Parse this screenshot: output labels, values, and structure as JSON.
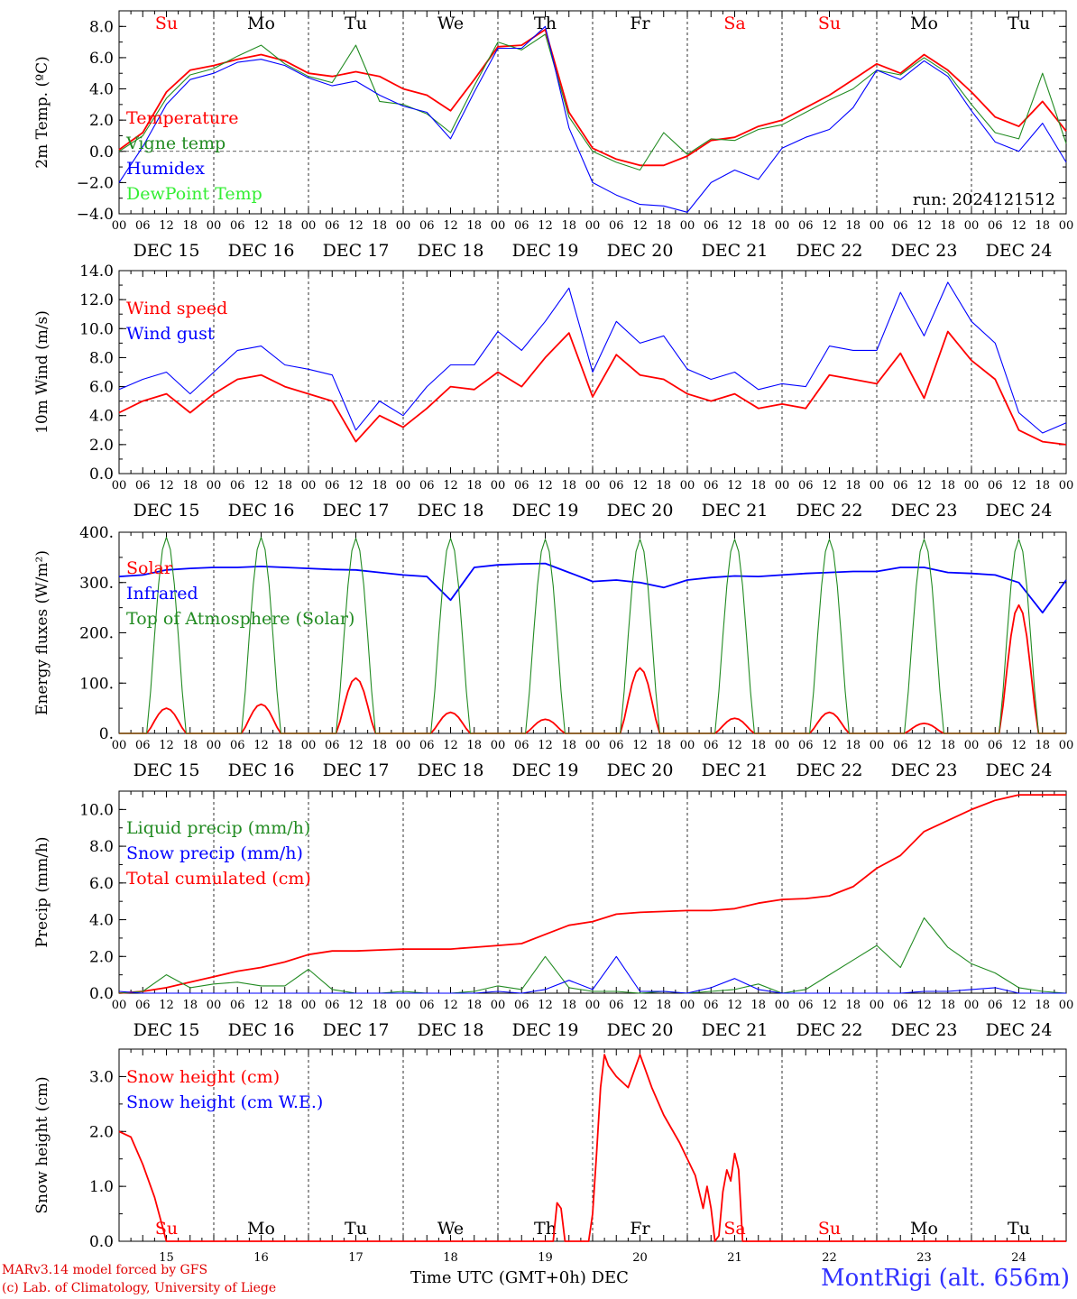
{
  "footer": {
    "model_line": "MARv3.14 model forced by GFS",
    "credit_line": "(c) Lab. of Climatology, University of Liege",
    "time_label": "Time UTC (GMT+0h) DEC",
    "station": "MontRigi (alt. 656m)"
  },
  "colors": {
    "red": "#ff0000",
    "green": "#228b22",
    "blue": "#0000ff",
    "lightgreen": "#33ee33",
    "black": "#000000"
  },
  "chart_data": [
    {
      "id": "temp",
      "type": "line",
      "ylabel": "2m Temp. (ºC)",
      "ylim": [
        -4,
        9
      ],
      "yticks": [
        -4,
        -2,
        0,
        2,
        4,
        6,
        8
      ],
      "ytick_labels": [
        "−4.0",
        "−2.0",
        "0.0",
        "2.0",
        "4.0",
        "6.0",
        "8.0"
      ],
      "ref_line": 0,
      "day_names": [
        "Su",
        "Mo",
        "Tu",
        "We",
        "Th",
        "Fr",
        "Sa",
        "Su",
        "Mo",
        "Tu"
      ],
      "day_colors": [
        "red",
        "black",
        "black",
        "black",
        "black",
        "black",
        "red",
        "red",
        "black",
        "black"
      ],
      "annotation": "run: 2024121512",
      "x_hours": [
        0,
        6,
        12,
        18,
        24,
        30,
        36,
        42,
        48,
        54,
        60,
        66,
        72,
        78,
        84,
        90,
        96,
        102,
        108,
        114,
        120,
        126,
        132,
        138,
        144,
        150,
        156,
        162,
        168,
        174,
        180,
        186,
        192,
        198,
        204,
        210,
        216,
        222,
        228,
        234,
        240
      ],
      "series": [
        {
          "name": "Temperature",
          "color": "red",
          "values": [
            0.1,
            1.2,
            3.8,
            5.2,
            5.5,
            5.9,
            6.2,
            5.8,
            5.0,
            4.8,
            5.1,
            4.8,
            4.0,
            3.6,
            2.6,
            4.6,
            6.7,
            6.8,
            7.8,
            2.5,
            0.2,
            -0.5,
            -0.9,
            -0.9,
            -0.3,
            0.7,
            0.9,
            1.6,
            2.0,
            2.8,
            3.6,
            4.6,
            5.6,
            5.0,
            6.2,
            5.2,
            3.8,
            2.2,
            1.6,
            3.2,
            1.3
          ]
        },
        {
          "name": "Vigne temp",
          "color": "green",
          "values": [
            0.0,
            1.0,
            3.4,
            4.9,
            5.3,
            6.1,
            6.8,
            5.6,
            4.8,
            4.4,
            6.8,
            3.2,
            3.0,
            2.4,
            1.2,
            4.2,
            7.0,
            6.5,
            7.5,
            2.2,
            0.0,
            -0.7,
            -1.2,
            1.2,
            -0.2,
            0.8,
            0.7,
            1.4,
            1.7,
            2.5,
            3.3,
            4.0,
            5.2,
            4.9,
            6.0,
            5.0,
            3.0,
            1.2,
            0.8,
            5.0,
            0.5
          ]
        },
        {
          "name": "Humidex",
          "color": "blue",
          "values": [
            -2.0,
            0.3,
            3.0,
            4.6,
            5.0,
            5.7,
            5.9,
            5.5,
            4.7,
            4.2,
            4.5,
            3.6,
            2.9,
            2.5,
            0.8,
            3.8,
            6.6,
            6.6,
            8.0,
            1.5,
            -2.0,
            -2.8,
            -3.4,
            -3.5,
            -3.9,
            -2.0,
            -1.2,
            -1.8,
            0.2,
            0.9,
            1.4,
            2.8,
            5.2,
            4.6,
            5.8,
            4.8,
            2.6,
            0.6,
            0.0,
            1.8,
            -0.7
          ]
        }
      ],
      "legend": [
        {
          "label": "Temperature",
          "color": "red"
        },
        {
          "label": "Vigne temp",
          "color": "green"
        },
        {
          "label": "Humidex",
          "color": "blue"
        },
        {
          "label": "DewPoint Temp",
          "color": "lightgreen"
        }
      ]
    },
    {
      "id": "wind",
      "type": "line",
      "ylabel": "10m Wind (m/s)",
      "ylim": [
        0,
        14
      ],
      "yticks": [
        0,
        2,
        4,
        6,
        8,
        10,
        12,
        14
      ],
      "ytick_labels": [
        "0.0",
        "2.0",
        "4.0",
        "6.0",
        "8.0",
        "10.0",
        "12.0",
        "14.0"
      ],
      "ref_line": 5,
      "x_hours": [
        0,
        6,
        12,
        18,
        24,
        30,
        36,
        42,
        48,
        54,
        60,
        66,
        72,
        78,
        84,
        90,
        96,
        102,
        108,
        114,
        120,
        126,
        132,
        138,
        144,
        150,
        156,
        162,
        168,
        174,
        180,
        186,
        192,
        198,
        204,
        210,
        216,
        222,
        228,
        234,
        240
      ],
      "series": [
        {
          "name": "Wind speed",
          "color": "red",
          "values": [
            4.2,
            5.0,
            5.5,
            4.2,
            5.5,
            6.5,
            6.8,
            6.0,
            5.5,
            5.0,
            2.2,
            4.0,
            3.2,
            4.5,
            6.0,
            5.8,
            7.0,
            6.0,
            8.0,
            9.7,
            5.3,
            8.2,
            6.8,
            6.5,
            5.5,
            5.0,
            5.5,
            4.5,
            4.8,
            4.5,
            6.8,
            6.5,
            6.2,
            8.3,
            5.2,
            9.8,
            7.8,
            6.5,
            3.0,
            2.2,
            2.0
          ]
        },
        {
          "name": "Wind gust",
          "color": "blue",
          "values": [
            5.8,
            6.5,
            7.0,
            5.5,
            7.0,
            8.5,
            8.8,
            7.5,
            7.2,
            6.8,
            3.0,
            5.0,
            4.0,
            6.0,
            7.5,
            7.5,
            9.8,
            8.5,
            10.5,
            12.8,
            7.0,
            10.5,
            9.0,
            9.5,
            7.2,
            6.5,
            7.0,
            5.8,
            6.2,
            6.0,
            8.8,
            8.5,
            8.5,
            12.5,
            9.5,
            13.2,
            10.5,
            9.0,
            4.2,
            2.8,
            3.5
          ]
        }
      ],
      "legend": [
        {
          "label": "Wind speed",
          "color": "red"
        },
        {
          "label": "Wind gust",
          "color": "blue"
        }
      ]
    },
    {
      "id": "energy",
      "type": "line",
      "ylabel": "Energy fluxes (W/m²)",
      "ylim": [
        0,
        400
      ],
      "yticks": [
        0,
        100,
        200,
        300,
        400
      ],
      "ytick_labels": [
        "0.",
        "100.",
        "200.",
        "300.",
        "400."
      ],
      "x_hours": [
        0,
        6,
        12,
        18,
        24,
        30,
        36,
        42,
        48,
        54,
        60,
        66,
        72,
        78,
        84,
        90,
        96,
        102,
        108,
        114,
        120,
        126,
        132,
        138,
        144,
        150,
        156,
        162,
        168,
        174,
        180,
        186,
        192,
        198,
        204,
        210,
        216,
        222,
        228,
        234,
        240
      ],
      "series": [
        {
          "name": "Infrared",
          "color": "blue",
          "values": [
            312,
            315,
            325,
            328,
            330,
            330,
            332,
            330,
            328,
            326,
            325,
            320,
            315,
            312,
            265,
            330,
            335,
            337,
            338,
            320,
            302,
            305,
            300,
            290,
            305,
            310,
            313,
            312,
            315,
            318,
            320,
            322,
            322,
            330,
            330,
            320,
            318,
            315,
            300,
            240,
            305
          ]
        },
        {
          "name": "Solar",
          "color": "red",
          "daily_peaks": [
            50,
            58,
            110,
            42,
            28,
            130,
            30,
            42,
            20,
            255
          ]
        },
        {
          "name": "Top of Atmosphere (Solar)",
          "color": "green",
          "daily_peaks": [
            390,
            390,
            388,
            388,
            386,
            386,
            386,
            386,
            386,
            386
          ]
        }
      ],
      "legend": [
        {
          "label": "Solar",
          "color": "red"
        },
        {
          "label": "Infrared",
          "color": "blue"
        },
        {
          "label": "Top of Atmosphere (Solar)",
          "color": "green"
        }
      ]
    },
    {
      "id": "precip",
      "type": "line",
      "ylabel": "Precip (mm/h)",
      "ylim": [
        0,
        11
      ],
      "yticks": [
        0,
        2,
        4,
        6,
        8,
        10
      ],
      "ytick_labels": [
        "0.0",
        "2.0",
        "4.0",
        "6.0",
        "8.0",
        "10.0"
      ],
      "x_hours": [
        0,
        6,
        12,
        18,
        24,
        30,
        36,
        42,
        48,
        54,
        60,
        66,
        72,
        78,
        84,
        90,
        96,
        102,
        108,
        114,
        120,
        126,
        132,
        138,
        144,
        150,
        156,
        162,
        168,
        174,
        180,
        186,
        192,
        198,
        204,
        210,
        216,
        222,
        228,
        234,
        240
      ],
      "series": [
        {
          "name": "Total cumulated (cm)",
          "color": "red",
          "values": [
            0.0,
            0.1,
            0.3,
            0.6,
            0.9,
            1.2,
            1.4,
            1.7,
            2.1,
            2.3,
            2.3,
            2.35,
            2.4,
            2.4,
            2.4,
            2.5,
            2.6,
            2.7,
            3.2,
            3.7,
            3.9,
            4.3,
            4.4,
            4.45,
            4.5,
            4.5,
            4.6,
            4.9,
            5.1,
            5.15,
            5.3,
            5.8,
            6.8,
            7.5,
            8.8,
            9.4,
            10.0,
            10.5,
            10.8,
            10.8,
            10.8
          ]
        },
        {
          "name": "Liquid precip (mm/h)",
          "color": "green",
          "values": [
            0.0,
            0.1,
            1.0,
            0.3,
            0.5,
            0.6,
            0.4,
            0.4,
            1.3,
            0.2,
            0.0,
            0.0,
            0.1,
            0.0,
            0.0,
            0.1,
            0.4,
            0.2,
            2.0,
            0.3,
            0.1,
            0.1,
            0.0,
            0.1,
            0.0,
            0.1,
            0.2,
            0.5,
            0.0,
            0.2,
            1.0,
            1.8,
            2.6,
            1.4,
            4.1,
            2.5,
            1.6,
            1.1,
            0.3,
            0.1,
            0.0
          ]
        },
        {
          "name": "Snow precip (mm/h)",
          "color": "blue",
          "values": [
            0.1,
            0.0,
            0.0,
            0.0,
            0.0,
            0.0,
            0.0,
            0.0,
            0.0,
            0.0,
            0.0,
            0.0,
            0.0,
            0.0,
            0.0,
            0.0,
            0.1,
            0.0,
            0.2,
            0.7,
            0.2,
            2.0,
            0.1,
            0.1,
            0.0,
            0.3,
            0.8,
            0.2,
            0.0,
            0.0,
            0.0,
            0.0,
            0.0,
            0.0,
            0.1,
            0.1,
            0.2,
            0.3,
            0.0,
            0.0,
            0.0
          ]
        }
      ],
      "legend": [
        {
          "label": "Liquid precip (mm/h)",
          "color": "green"
        },
        {
          "label": "Snow precip (mm/h)",
          "color": "blue"
        },
        {
          "label": "Total cumulated (cm)",
          "color": "red"
        }
      ]
    },
    {
      "id": "snow",
      "type": "line",
      "ylabel": "Snow height (cm)",
      "ylim": [
        0,
        3.5
      ],
      "yticks": [
        0,
        1,
        2,
        3
      ],
      "ytick_labels": [
        "0.0",
        "1.0",
        "2.0",
        "3.0"
      ],
      "day_names": [
        "Su",
        "Mo",
        "Tu",
        "We",
        "Th",
        "Fr",
        "Sa",
        "Su",
        "Mo",
        "Tu"
      ],
      "day_colors": [
        "red",
        "black",
        "black",
        "black",
        "black",
        "black",
        "red",
        "red",
        "black",
        "black"
      ],
      "day_numbers": [
        "15",
        "16",
        "17",
        "18",
        "19",
        "20",
        "21",
        "22",
        "23",
        "24"
      ],
      "x_hours": [
        0,
        3,
        6,
        9,
        12,
        15,
        18,
        84,
        110,
        111,
        112,
        113,
        114,
        119,
        120,
        121,
        122,
        123,
        124,
        126,
        129,
        132,
        135,
        138,
        142,
        146,
        148,
        149,
        150,
        151,
        152,
        153,
        154,
        155,
        156,
        157,
        158,
        240
      ],
      "series": [
        {
          "name": "Snow height (cm)",
          "color": "red",
          "values": [
            2.0,
            1.9,
            1.4,
            0.8,
            0.0,
            0.0,
            0.0,
            0.0,
            0.0,
            0.7,
            0.6,
            0.0,
            0.0,
            0.0,
            0.5,
            1.6,
            2.8,
            3.4,
            3.2,
            3.0,
            2.8,
            3.4,
            2.8,
            2.3,
            1.8,
            1.2,
            0.6,
            1.0,
            0.6,
            0.0,
            0.1,
            0.9,
            1.3,
            1.1,
            1.6,
            1.3,
            0.0,
            0.0
          ]
        }
      ],
      "legend": [
        {
          "label": "Snow height (cm)",
          "color": "red"
        },
        {
          "label": "Snow height (cm W.E.)",
          "color": "blue"
        }
      ]
    }
  ],
  "x_axis": {
    "hour_labels": [
      "00",
      "06",
      "12",
      "18"
    ],
    "end_label": "00",
    "day_labels": [
      "DEC 15",
      "DEC 16",
      "DEC 17",
      "DEC 18",
      "DEC 19",
      "DEC 20",
      "DEC 21",
      "DEC 22",
      "DEC 23",
      "DEC 24"
    ],
    "hours_total": 240
  }
}
